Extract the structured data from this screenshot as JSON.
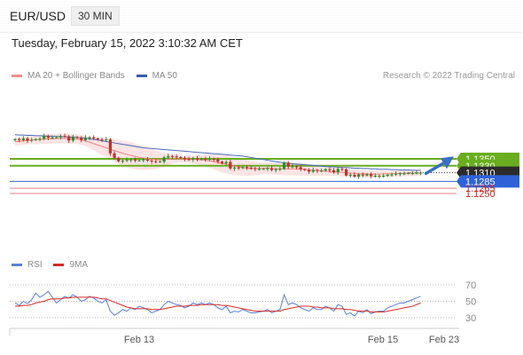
{
  "header": {
    "pair": "EUR/USD",
    "timeframe": "30 MIN"
  },
  "datetime": "Tuesday, February 15, 2022 3:10:32 AM CET",
  "legend": [
    {
      "label": "MA 20 + Bollinger Bands",
      "color": "#f28e8e"
    },
    {
      "label": "MA 50",
      "color": "#3a5da8"
    }
  ],
  "credit": "Research © 2022 Trading Central",
  "rsi_legend": [
    {
      "label": "RSI",
      "color": "#5b7fd6"
    },
    {
      "label": "9MA",
      "color": "#d62a2a"
    }
  ],
  "colors": {
    "up": "#2e8b2e",
    "down": "#c0302b",
    "resistance": "#6aad1e",
    "pivot": "#2f62d9",
    "support": "#e87f7f",
    "last": "#2b2b2b"
  },
  "chart_data": [
    {
      "type": "candlestick",
      "title": "",
      "ylim": [
        1.1245,
        1.1445
      ],
      "x_ticks": [
        "Feb 13",
        "Feb 15",
        "Feb 23"
      ],
      "price_levels": [
        {
          "label": "1.1350",
          "value": 1.135,
          "kind": "resistance"
        },
        {
          "label": "1.1330",
          "value": 1.133,
          "kind": "resistance"
        },
        {
          "label": "1.1310",
          "value": 1.131,
          "kind": "last"
        },
        {
          "label": "1.1285",
          "value": 1.1285,
          "kind": "pivot"
        },
        {
          "label": "1.1265",
          "value": 1.1265,
          "kind": "support"
        },
        {
          "label": "1.1250",
          "value": 1.125,
          "kind": "support"
        }
      ],
      "close": [
        1.1407,
        1.1404,
        1.1409,
        1.1403,
        1.1405,
        1.1407,
        1.1408,
        1.1416,
        1.1411,
        1.1412,
        1.1412,
        1.1416,
        1.1415,
        1.1403,
        1.1413,
        1.1411,
        1.1404,
        1.1411,
        1.1412,
        1.1409,
        1.1406,
        1.1405,
        1.1406,
        1.1366,
        1.1353,
        1.1343,
        1.1345,
        1.1347,
        1.1348,
        1.1345,
        1.1346,
        1.1348,
        1.1345,
        1.1343,
        1.1342,
        1.1342,
        1.1354,
        1.1358,
        1.1357,
        1.1355,
        1.1353,
        1.1349,
        1.1348,
        1.1352,
        1.1348,
        1.1351,
        1.1348,
        1.135,
        1.1348,
        1.1342,
        1.1337,
        1.1341,
        1.1322,
        1.1325,
        1.1323,
        1.1326,
        1.1324,
        1.1323,
        1.1321,
        1.1321,
        1.1321,
        1.1323,
        1.1318,
        1.132,
        1.1321,
        1.1339,
        1.1327,
        1.1328,
        1.1326,
        1.132,
        1.1318,
        1.1313,
        1.1318,
        1.1316,
        1.1316,
        1.132,
        1.1317,
        1.1311,
        1.1321,
        1.132,
        1.1302,
        1.1304,
        1.1299,
        1.1305,
        1.1302,
        1.1306,
        1.13,
        1.1301,
        1.1301,
        1.1301,
        1.1304,
        1.1305,
        1.1307,
        1.1308,
        1.1308,
        1.1309,
        1.1309,
        1.131,
        1.131
      ],
      "ma20": [
        1.14,
        1.14,
        1.1402,
        1.1403,
        1.1404,
        1.1405,
        1.1406,
        1.1407,
        1.1408,
        1.1408,
        1.1409,
        1.1409,
        1.1409,
        1.1408,
        1.1408,
        1.1407,
        1.1405,
        1.1402,
        1.1398,
        1.1394,
        1.139,
        1.1386,
        1.1382,
        1.1378,
        1.1374,
        1.137,
        1.1366,
        1.1363,
        1.136,
        1.1357,
        1.1354,
        1.1352,
        1.135,
        1.1349,
        1.1348,
        1.1347,
        1.1348,
        1.1349,
        1.135,
        1.135,
        1.135,
        1.1349,
        1.1349,
        1.1349,
        1.1348,
        1.1347,
        1.1346,
        1.1344,
        1.1342,
        1.1339,
        1.1337,
        1.1335,
        1.1332,
        1.1329,
        1.1327,
        1.1325,
        1.1323,
        1.1322,
        1.1322,
        1.1322,
        1.1323,
        1.1323,
        1.1322,
        1.1321,
        1.1321,
        1.1321,
        1.1321,
        1.1321,
        1.1321,
        1.132,
        1.1319,
        1.1318,
        1.1317,
        1.1316,
        1.1315,
        1.1314,
        1.1313,
        1.1312,
        1.1312,
        1.1311,
        1.131,
        1.1309,
        1.1308,
        1.1307,
        1.1307,
        1.1306,
        1.1306,
        1.1306,
        1.1306,
        1.1307,
        1.1307,
        1.1307,
        1.1308,
        1.1308,
        1.1308,
        1.1309,
        1.1309,
        1.1309,
        1.1309
      ],
      "ma50": [
        1.142,
        1.1419,
        1.1419,
        1.1418,
        1.1418,
        1.1417,
        1.1417,
        1.1416,
        1.1416,
        1.1415,
        1.1415,
        1.1414,
        1.1414,
        1.1413,
        1.1413,
        1.1412,
        1.1411,
        1.141,
        1.1408,
        1.1406,
        1.1404,
        1.1402,
        1.14,
        1.1398,
        1.1396,
        1.1394,
        1.1392,
        1.139,
        1.1388,
        1.1386,
        1.1384,
        1.1382,
        1.1381,
        1.138,
        1.1379,
        1.1378,
        1.1377,
        1.1376,
        1.1375,
        1.1374,
        1.1373,
        1.1372,
        1.1371,
        1.137,
        1.1369,
        1.1368,
        1.1367,
        1.1366,
        1.1365,
        1.1364,
        1.1363,
        1.1362,
        1.1361,
        1.136,
        1.1359,
        1.1358,
        1.1356,
        1.1354,
        1.1352,
        1.135,
        1.1348,
        1.1346,
        1.1344,
        1.1342,
        1.134,
        1.1339,
        1.1337,
        1.1336,
        1.1335,
        1.1334,
        1.1333,
        1.1332,
        1.1331,
        1.133,
        1.1329,
        1.1328,
        1.1327,
        1.1327,
        1.1326,
        1.1325,
        1.1325,
        1.1324,
        1.1323,
        1.1323,
        1.1322,
        1.1322,
        1.1321,
        1.1321,
        1.132,
        1.132,
        1.132,
        1.1319,
        1.1319,
        1.1318,
        1.1318,
        1.1318,
        1.1317,
        1.1317,
        1.1317
      ],
      "bb_width": [
        0.0011,
        0.0011,
        0.0011,
        0.0012,
        0.0012,
        0.0013,
        0.0013,
        0.0014,
        0.0014,
        0.0014,
        0.0014,
        0.0014,
        0.0014,
        0.0014,
        0.0014,
        0.0014,
        0.0014,
        0.0015,
        0.0017,
        0.0019,
        0.0022,
        0.0025,
        0.0028,
        0.0031,
        0.0033,
        0.0035,
        0.0037,
        0.0038,
        0.0038,
        0.0037,
        0.0036,
        0.0034,
        0.0032,
        0.003,
        0.0027,
        0.0024,
        0.002,
        0.0017,
        0.0014,
        0.0012,
        0.001,
        0.001,
        0.0011,
        0.0012,
        0.0014,
        0.0016,
        0.0018,
        0.002,
        0.0022,
        0.0024,
        0.0026,
        0.0027,
        0.0027,
        0.0026,
        0.0025,
        0.0024,
        0.0022,
        0.0021,
        0.0019,
        0.0018,
        0.0017,
        0.0017,
        0.0017,
        0.0017,
        0.0017,
        0.0018,
        0.0019,
        0.0019,
        0.0019,
        0.0019,
        0.0018,
        0.0017,
        0.0016,
        0.0015,
        0.0014,
        0.0013,
        0.0012,
        0.0011,
        0.0011,
        0.0011,
        0.0011,
        0.0011,
        0.0011,
        0.0011,
        0.001,
        0.001,
        0.001,
        0.001,
        0.001,
        0.001,
        0.0009,
        0.0009,
        0.0009,
        0.0009,
        0.0009,
        0.0009,
        0.0009,
        0.0009,
        0.0009
      ]
    },
    {
      "type": "line",
      "title": "RSI",
      "ylim": [
        20,
        80
      ],
      "y_ticks": [
        70,
        50,
        30
      ],
      "series": [
        {
          "name": "RSI",
          "values": [
            48,
            45,
            50,
            47,
            52,
            60,
            55,
            58,
            62,
            55,
            48,
            52,
            56,
            54,
            58,
            55,
            50,
            52,
            56,
            54,
            50,
            48,
            52,
            38,
            33,
            36,
            40,
            38,
            42,
            40,
            44,
            42,
            40,
            36,
            38,
            40,
            46,
            50,
            48,
            46,
            45,
            42,
            44,
            48,
            46,
            48,
            46,
            48,
            46,
            42,
            40,
            44,
            36,
            38,
            37,
            40,
            38,
            36,
            36,
            37,
            38,
            40,
            36,
            38,
            40,
            58,
            46,
            48,
            46,
            42,
            40,
            38,
            42,
            40,
            40,
            44,
            42,
            38,
            46,
            44,
            34,
            36,
            32,
            38,
            36,
            40,
            35,
            37,
            38,
            38,
            42,
            44,
            46,
            48,
            48,
            50,
            52,
            54,
            56
          ]
        },
        {
          "name": "9MA",
          "values": [
            44,
            44,
            45,
            45,
            46,
            48,
            49,
            50,
            52,
            53,
            53,
            53,
            54,
            54,
            55,
            55,
            55,
            55,
            55,
            55,
            54,
            53,
            53,
            51,
            49,
            47,
            45,
            43,
            42,
            41,
            41,
            41,
            41,
            40,
            40,
            40,
            41,
            42,
            43,
            44,
            44,
            44,
            45,
            45,
            45,
            46,
            46,
            46,
            46,
            46,
            45,
            45,
            44,
            43,
            42,
            41,
            40,
            39,
            38,
            38,
            38,
            38,
            38,
            38,
            38,
            40,
            41,
            42,
            43,
            44,
            44,
            44,
            43,
            43,
            42,
            42,
            42,
            41,
            41,
            41,
            40,
            40,
            39,
            38,
            38,
            38,
            37,
            37,
            37,
            37,
            38,
            39,
            40,
            41,
            42,
            43,
            44,
            46,
            48
          ]
        }
      ]
    }
  ]
}
